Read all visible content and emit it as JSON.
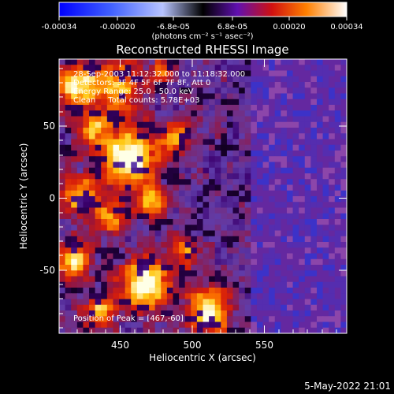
{
  "colorbar": {
    "tick_labels": [
      "-0.00034",
      "-0.00020",
      "-6.8e-05",
      "6.8e-05",
      "0.00020",
      "0.00034"
    ],
    "units_label": "(photons cm⁻² s⁻¹ asec⁻²)",
    "range": [
      -0.00034,
      0.00034
    ]
  },
  "plot": {
    "title": "Reconstructed RHESSI Image",
    "xlabel": "Heliocentric X (arcsec)",
    "ylabel": "Heliocentric Y (arcsec)",
    "x_ticks": [
      "450",
      "500",
      "550"
    ],
    "y_ticks": [
      "50",
      "0",
      "-50"
    ],
    "xlim": [
      405,
      595
    ],
    "ylim": [
      -95,
      95
    ]
  },
  "annotations": {
    "time_range": "28-Sep-2003 11:12:32.000 to 11:18:32.000",
    "detectors": "Detectors: 3F 4F 5F 6F 7F 8F, Att 0",
    "energy_range": "Energy Range: 25.0 - 50.0 keV",
    "clean_counts": "Clean     Total counts: 5.78E+03",
    "peak_position": "Position of Peak = [467,-60]"
  },
  "footer": {
    "timestamp": "5-May-2022 21:01"
  },
  "colors": {
    "background": "#000000",
    "text": "#ffffff"
  }
}
